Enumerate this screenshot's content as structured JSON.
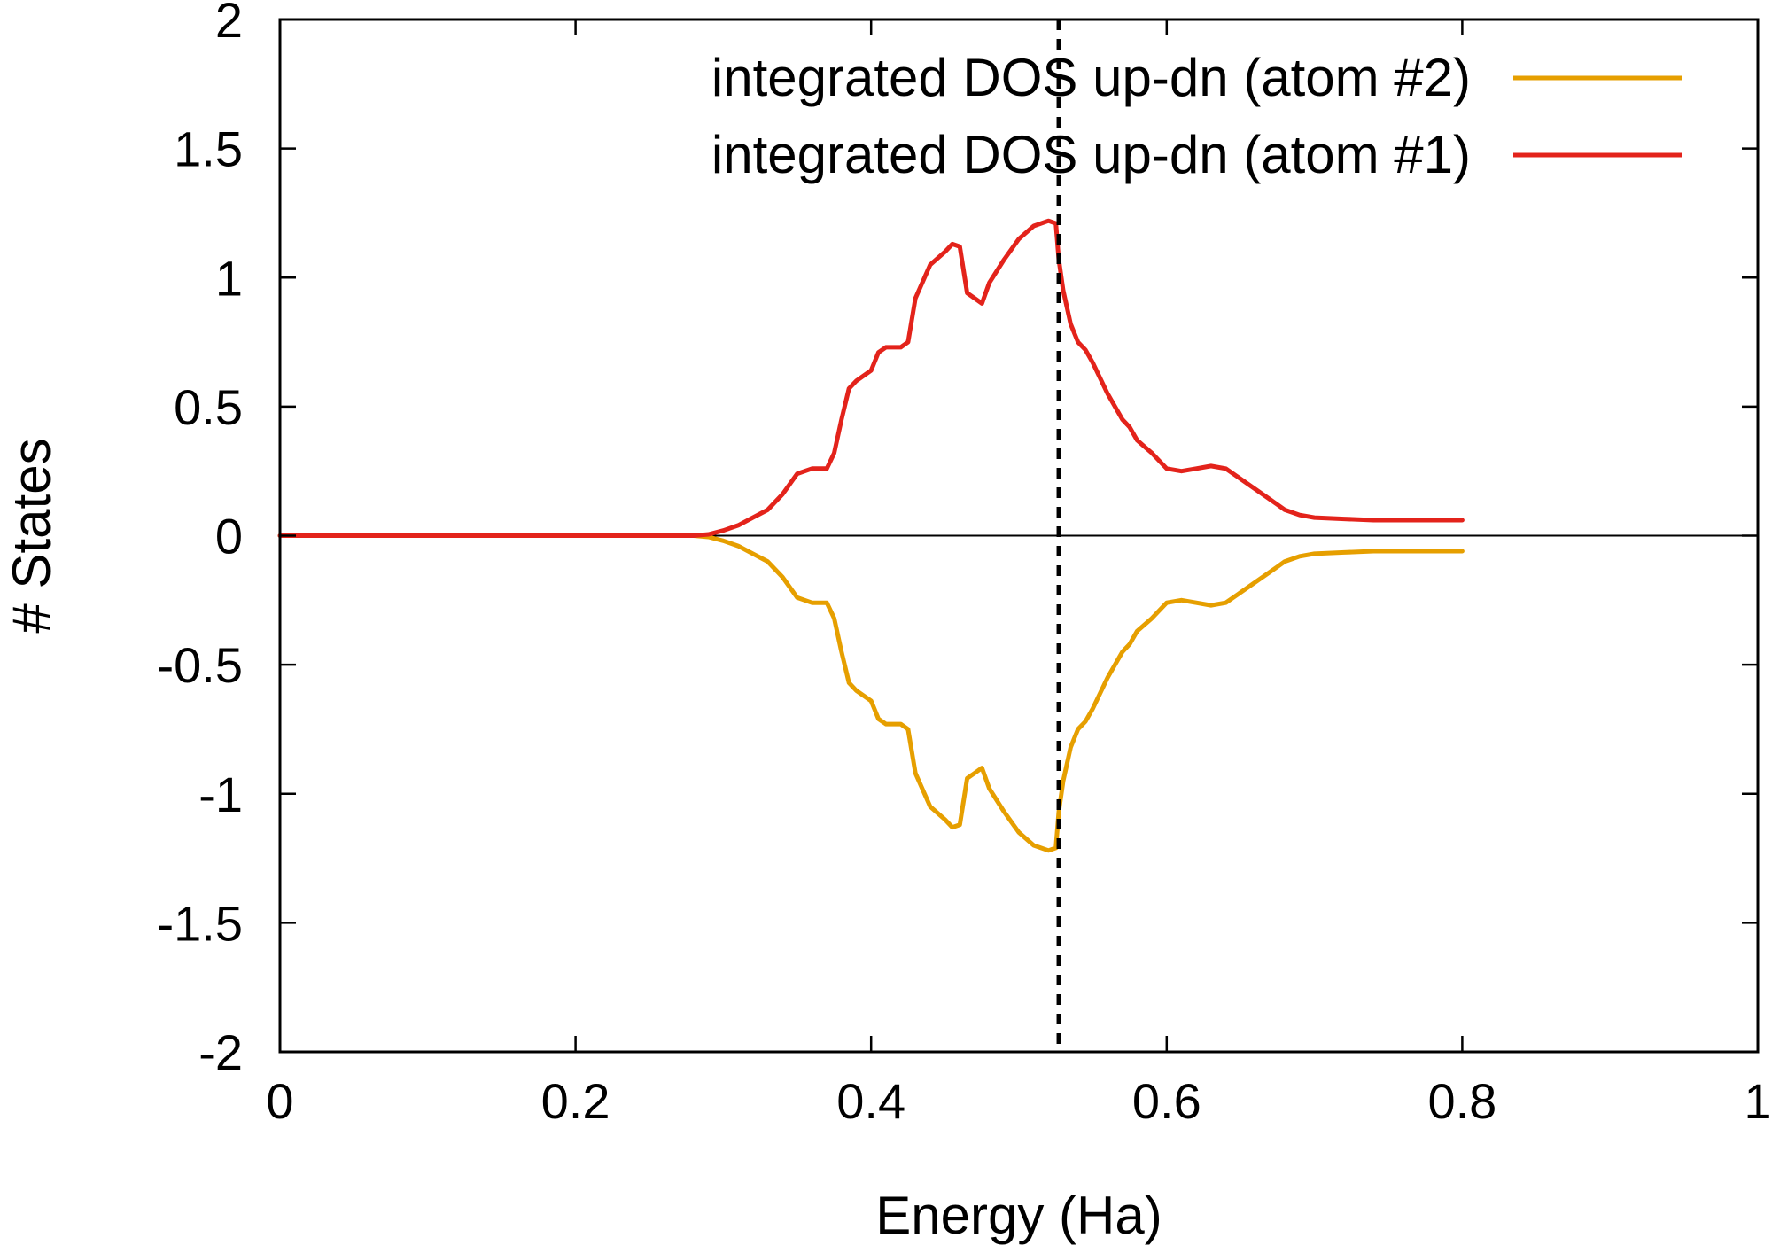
{
  "chart_data": {
    "type": "line",
    "title": "",
    "xlabel": "Energy (Ha)",
    "ylabel": "# States",
    "xlim": [
      0,
      1
    ],
    "ylim": [
      -2,
      2
    ],
    "xticks": [
      0,
      0.2,
      0.4,
      0.6,
      0.8,
      1
    ],
    "xtick_labels": [
      "0",
      "0.2",
      "0.4",
      "0.6",
      "0.8",
      "1"
    ],
    "yticks": [
      -2,
      -1.5,
      -1,
      -0.5,
      0,
      0.5,
      1,
      1.5,
      2
    ],
    "ytick_labels": [
      "-2",
      "-1.5",
      "-1",
      "-0.5",
      "0",
      "0.5",
      "1",
      "1.5",
      "2"
    ],
    "grid": false,
    "legend_position": "top-right",
    "zero_line": true,
    "vertical_dashed_line_x": 0.527,
    "series": [
      {
        "name": "integrated DOS up-dn (atom #2)",
        "color": "#e69f00",
        "x": [
          0,
          0.1,
          0.2,
          0.28,
          0.29,
          0.3,
          0.31,
          0.32,
          0.33,
          0.34,
          0.35,
          0.36,
          0.37,
          0.375,
          0.38,
          0.385,
          0.39,
          0.4,
          0.405,
          0.41,
          0.42,
          0.425,
          0.43,
          0.44,
          0.45,
          0.455,
          0.46,
          0.465,
          0.47,
          0.475,
          0.48,
          0.49,
          0.5,
          0.51,
          0.52,
          0.525,
          0.527,
          0.53,
          0.535,
          0.54,
          0.545,
          0.55,
          0.56,
          0.57,
          0.575,
          0.58,
          0.59,
          0.6,
          0.61,
          0.62,
          0.63,
          0.64,
          0.65,
          0.66,
          0.67,
          0.675,
          0.68,
          0.69,
          0.7,
          0.72,
          0.74,
          0.76,
          0.78,
          0.8
        ],
        "values": [
          0,
          0,
          0,
          0,
          -0.005,
          -0.02,
          -0.04,
          -0.07,
          -0.1,
          -0.16,
          -0.24,
          -0.26,
          -0.26,
          -0.32,
          -0.45,
          -0.57,
          -0.6,
          -0.64,
          -0.71,
          -0.73,
          -0.73,
          -0.75,
          -0.92,
          -1.05,
          -1.1,
          -1.13,
          -1.12,
          -0.94,
          -0.92,
          -0.9,
          -0.98,
          -1.07,
          -1.15,
          -1.2,
          -1.22,
          -1.21,
          -1.07,
          -0.95,
          -0.82,
          -0.75,
          -0.72,
          -0.67,
          -0.55,
          -0.45,
          -0.42,
          -0.37,
          -0.32,
          -0.26,
          -0.25,
          -0.26,
          -0.27,
          -0.26,
          -0.22,
          -0.18,
          -0.14,
          -0.12,
          -0.1,
          -0.08,
          -0.07,
          -0.065,
          -0.06,
          -0.06,
          -0.06,
          -0.06
        ]
      },
      {
        "name": "integrated DOS up-dn (atom #1)",
        "color": "#e3231b",
        "x": [
          0,
          0.1,
          0.2,
          0.28,
          0.29,
          0.3,
          0.31,
          0.32,
          0.33,
          0.34,
          0.35,
          0.36,
          0.37,
          0.375,
          0.38,
          0.385,
          0.39,
          0.4,
          0.405,
          0.41,
          0.42,
          0.425,
          0.43,
          0.44,
          0.45,
          0.455,
          0.46,
          0.465,
          0.47,
          0.475,
          0.48,
          0.49,
          0.5,
          0.51,
          0.52,
          0.525,
          0.527,
          0.53,
          0.535,
          0.54,
          0.545,
          0.55,
          0.56,
          0.57,
          0.575,
          0.58,
          0.59,
          0.6,
          0.61,
          0.62,
          0.63,
          0.64,
          0.65,
          0.66,
          0.67,
          0.675,
          0.68,
          0.69,
          0.7,
          0.72,
          0.74,
          0.76,
          0.78,
          0.8
        ],
        "values": [
          0,
          0,
          0,
          0,
          0.005,
          0.02,
          0.04,
          0.07,
          0.1,
          0.16,
          0.24,
          0.26,
          0.26,
          0.32,
          0.45,
          0.57,
          0.6,
          0.64,
          0.71,
          0.73,
          0.73,
          0.75,
          0.92,
          1.05,
          1.1,
          1.13,
          1.12,
          0.94,
          0.92,
          0.9,
          0.98,
          1.07,
          1.15,
          1.2,
          1.22,
          1.21,
          1.07,
          0.95,
          0.82,
          0.75,
          0.72,
          0.67,
          0.55,
          0.45,
          0.42,
          0.37,
          0.32,
          0.26,
          0.25,
          0.26,
          0.27,
          0.26,
          0.22,
          0.18,
          0.14,
          0.12,
          0.1,
          0.08,
          0.07,
          0.065,
          0.06,
          0.06,
          0.06,
          0.06
        ]
      }
    ]
  }
}
